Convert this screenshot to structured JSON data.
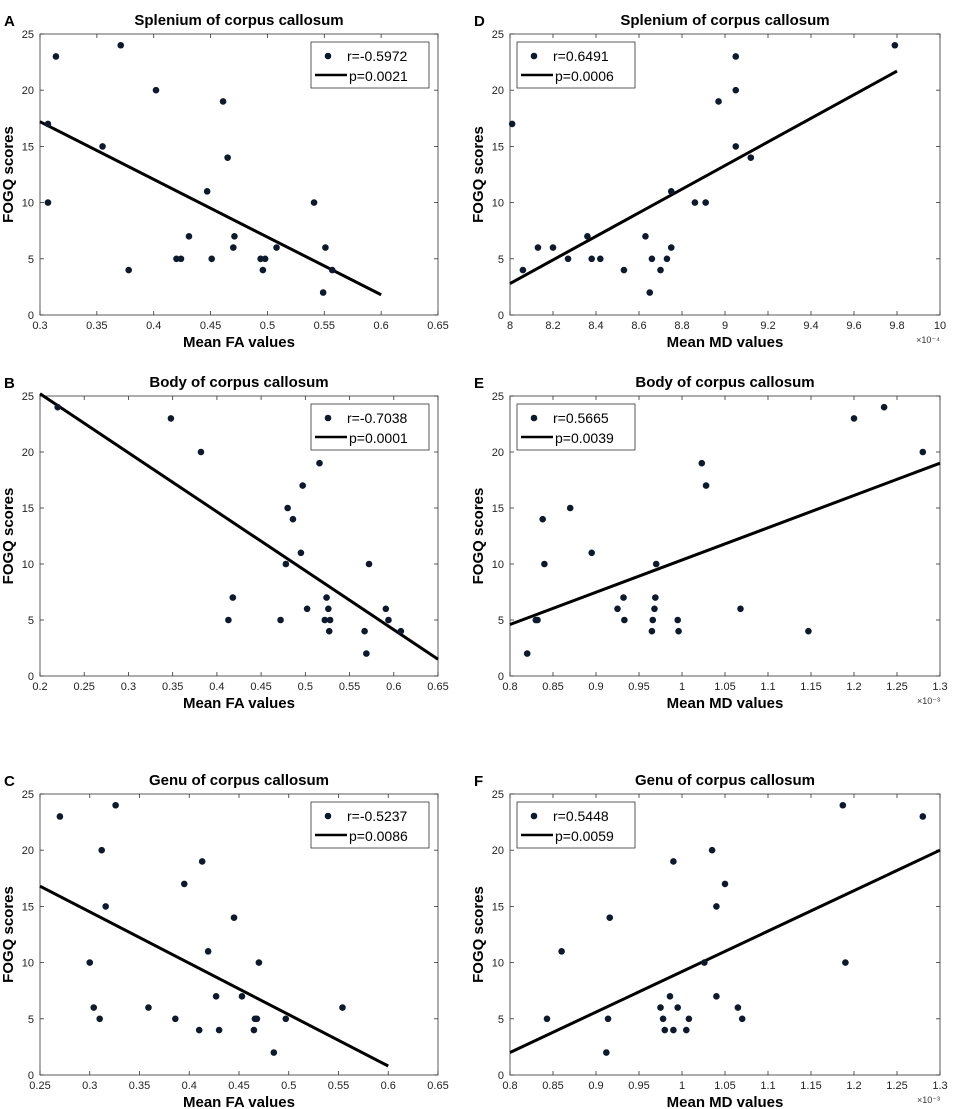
{
  "chart_data": [
    {
      "type": "scatter",
      "panel": "A",
      "title": "Splenium of corpus callosum",
      "xlabel": "Mean FA values",
      "ylabel": "FOGQ scores",
      "xlim": [
        0.3,
        0.65
      ],
      "ylim": [
        0,
        25
      ],
      "xticks": [
        0.3,
        0.35,
        0.4,
        0.45,
        0.5,
        0.55,
        0.6,
        0.65
      ],
      "xticklabels": [
        "0.3",
        "0.35",
        "0.4",
        "0.45",
        "0.5",
        "0.55",
        "0.6",
        "0.65"
      ],
      "yticks": [
        0,
        5,
        10,
        15,
        20,
        25
      ],
      "yticklabels": [
        "0",
        "5",
        "10",
        "15",
        "20",
        "25"
      ],
      "exponent_label": "",
      "legend": {
        "position": "top-right",
        "r": "r=-0.5972",
        "p": "p=0.0021"
      },
      "points": [
        [
          0.307,
          17
        ],
        [
          0.307,
          10
        ],
        [
          0.314,
          23
        ],
        [
          0.355,
          15
        ],
        [
          0.371,
          24
        ],
        [
          0.378,
          4
        ],
        [
          0.402,
          20
        ],
        [
          0.42,
          5
        ],
        [
          0.424,
          5
        ],
        [
          0.431,
          7
        ],
        [
          0.447,
          11
        ],
        [
          0.451,
          5
        ],
        [
          0.461,
          19
        ],
        [
          0.465,
          14
        ],
        [
          0.47,
          6
        ],
        [
          0.471,
          7
        ],
        [
          0.494,
          5
        ],
        [
          0.496,
          4
        ],
        [
          0.498,
          5
        ],
        [
          0.508,
          6
        ],
        [
          0.541,
          10
        ],
        [
          0.549,
          2
        ],
        [
          0.551,
          6
        ],
        [
          0.557,
          4
        ]
      ],
      "fit_line": [
        [
          0.3,
          17.2
        ],
        [
          0.6,
          1.8
        ]
      ]
    },
    {
      "type": "scatter",
      "panel": "D",
      "title": "Splenium of corpus callosum",
      "xlabel": "Mean MD values",
      "ylabel": "FOGQ scores",
      "xlim": [
        8,
        10
      ],
      "ylim": [
        0,
        25
      ],
      "xticks": [
        8,
        8.2,
        8.4,
        8.6,
        8.8,
        9,
        9.2,
        9.4,
        9.6,
        9.8,
        10
      ],
      "xticklabels": [
        "8",
        "8.2",
        "8.4",
        "8.6",
        "8.8",
        "9",
        "9.2",
        "9.4",
        "9.6",
        "9.8",
        "10"
      ],
      "yticks": [
        0,
        5,
        10,
        15,
        20,
        25
      ],
      "yticklabels": [
        "0",
        "5",
        "10",
        "15",
        "20",
        "25"
      ],
      "exponent_label": "×10⁻⁴",
      "legend": {
        "position": "top-left",
        "r": "r=0.6491",
        "p": "p=0.0006"
      },
      "points": [
        [
          8.01,
          17
        ],
        [
          8.06,
          4
        ],
        [
          8.13,
          6
        ],
        [
          8.2,
          6
        ],
        [
          8.27,
          5
        ],
        [
          8.36,
          7
        ],
        [
          8.38,
          5
        ],
        [
          8.42,
          5
        ],
        [
          8.53,
          4
        ],
        [
          8.63,
          7
        ],
        [
          8.65,
          2
        ],
        [
          8.66,
          5
        ],
        [
          8.7,
          4
        ],
        [
          8.73,
          5
        ],
        [
          8.75,
          6
        ],
        [
          8.75,
          11
        ],
        [
          8.86,
          10
        ],
        [
          8.91,
          10
        ],
        [
          8.97,
          19
        ],
        [
          9.05,
          23
        ],
        [
          9.05,
          20
        ],
        [
          9.05,
          15
        ],
        [
          9.12,
          14
        ],
        [
          9.79,
          24
        ]
      ],
      "fit_line": [
        [
          8,
          2.8
        ],
        [
          9.8,
          21.7
        ]
      ]
    },
    {
      "type": "scatter",
      "panel": "B",
      "title": "Body of corpus callosum",
      "xlabel": "Mean FA values",
      "ylabel": "FOGQ scores",
      "xlim": [
        0.2,
        0.65
      ],
      "ylim": [
        0,
        25
      ],
      "xticks": [
        0.2,
        0.25,
        0.3,
        0.35,
        0.4,
        0.45,
        0.5,
        0.55,
        0.6,
        0.65
      ],
      "xticklabels": [
        "0.2",
        "0.25",
        "0.3",
        "0.35",
        "0.4",
        "0.45",
        "0.5",
        "0.55",
        "0.6",
        "0.65"
      ],
      "yticks": [
        0,
        5,
        10,
        15,
        20,
        25
      ],
      "yticklabels": [
        "0",
        "5",
        "10",
        "15",
        "20",
        "25"
      ],
      "exponent_label": "",
      "legend": {
        "position": "top-right",
        "r": "r=-0.7038",
        "p": "p=0.0001"
      },
      "points": [
        [
          0.22,
          24
        ],
        [
          0.348,
          23
        ],
        [
          0.382,
          20
        ],
        [
          0.413,
          5
        ],
        [
          0.418,
          7
        ],
        [
          0.472,
          5
        ],
        [
          0.478,
          10
        ],
        [
          0.48,
          15
        ],
        [
          0.486,
          14
        ],
        [
          0.495,
          11
        ],
        [
          0.497,
          17
        ],
        [
          0.502,
          6
        ],
        [
          0.516,
          19
        ],
        [
          0.522,
          5
        ],
        [
          0.524,
          7
        ],
        [
          0.526,
          6
        ],
        [
          0.527,
          4
        ],
        [
          0.528,
          5
        ],
        [
          0.567,
          4
        ],
        [
          0.569,
          2
        ],
        [
          0.572,
          10
        ],
        [
          0.591,
          6
        ],
        [
          0.594,
          5
        ],
        [
          0.608,
          4
        ]
      ],
      "fit_line": [
        [
          0.2,
          25.2
        ],
        [
          0.65,
          1.5
        ]
      ]
    },
    {
      "type": "scatter",
      "panel": "E",
      "title": "Body of corpus callosum",
      "xlabel": "Mean MD values",
      "ylabel": "FOGQ scores",
      "xlim": [
        0.8,
        1.3
      ],
      "ylim": [
        0,
        25
      ],
      "xticks": [
        0.8,
        0.85,
        0.9,
        0.95,
        1,
        1.05,
        1.1,
        1.15,
        1.2,
        1.25,
        1.3
      ],
      "xticklabels": [
        "0.8",
        "0.85",
        "0.9",
        "0.95",
        "1",
        "1.05",
        "1.1",
        "1.15",
        "1.2",
        "1.25",
        "1.3"
      ],
      "yticks": [
        0,
        5,
        10,
        15,
        20,
        25
      ],
      "yticklabels": [
        "0",
        "5",
        "10",
        "15",
        "20",
        "25"
      ],
      "exponent_label": "×10⁻³",
      "legend": {
        "position": "top-left",
        "r": "r=0.5665",
        "p": "p=0.0039"
      },
      "points": [
        [
          0.82,
          2
        ],
        [
          0.83,
          5
        ],
        [
          0.832,
          5
        ],
        [
          0.838,
          14
        ],
        [
          0.84,
          10
        ],
        [
          0.87,
          15
        ],
        [
          0.895,
          11
        ],
        [
          0.925,
          6
        ],
        [
          0.932,
          7
        ],
        [
          0.933,
          5
        ],
        [
          0.965,
          4
        ],
        [
          0.966,
          5
        ],
        [
          0.968,
          6
        ],
        [
          0.969,
          7
        ],
        [
          0.97,
          10
        ],
        [
          0.995,
          5
        ],
        [
          0.996,
          4
        ],
        [
          1.023,
          19
        ],
        [
          1.028,
          17
        ],
        [
          1.068,
          6
        ],
        [
          1.147,
          4
        ],
        [
          1.2,
          23
        ],
        [
          1.235,
          24
        ],
        [
          1.28,
          20
        ]
      ],
      "fit_line": [
        [
          0.8,
          4.6
        ],
        [
          1.3,
          19.0
        ]
      ]
    },
    {
      "type": "scatter",
      "panel": "C",
      "title": "Genu of corpus callosum",
      "xlabel": "Mean FA values",
      "ylabel": "FOGQ scores",
      "xlim": [
        0.25,
        0.65
      ],
      "ylim": [
        0,
        25
      ],
      "xticks": [
        0.25,
        0.3,
        0.35,
        0.4,
        0.45,
        0.5,
        0.55,
        0.6,
        0.65
      ],
      "xticklabels": [
        "0.25",
        "0.3",
        "0.35",
        "0.4",
        "0.45",
        "0.5",
        "0.55",
        "0.6",
        "0.65"
      ],
      "yticks": [
        0,
        5,
        10,
        15,
        20,
        25
      ],
      "yticklabels": [
        "0",
        "5",
        "10",
        "15",
        "20",
        "25"
      ],
      "exponent_label": "",
      "legend": {
        "position": "top-right",
        "r": "r=-0.5237",
        "p": "p=0.0086"
      },
      "points": [
        [
          0.27,
          23
        ],
        [
          0.3,
          10
        ],
        [
          0.304,
          6
        ],
        [
          0.31,
          5
        ],
        [
          0.312,
          20
        ],
        [
          0.316,
          15
        ],
        [
          0.326,
          24
        ],
        [
          0.359,
          6
        ],
        [
          0.386,
          5
        ],
        [
          0.395,
          17
        ],
        [
          0.41,
          4
        ],
        [
          0.413,
          19
        ],
        [
          0.419,
          11
        ],
        [
          0.427,
          7
        ],
        [
          0.43,
          4
        ],
        [
          0.445,
          14
        ],
        [
          0.453,
          7
        ],
        [
          0.465,
          4
        ],
        [
          0.466,
          5
        ],
        [
          0.468,
          5
        ],
        [
          0.47,
          10
        ],
        [
          0.485,
          2
        ],
        [
          0.497,
          5
        ],
        [
          0.554,
          6
        ]
      ],
      "fit_line": [
        [
          0.25,
          16.8
        ],
        [
          0.6,
          0.8
        ]
      ]
    },
    {
      "type": "scatter",
      "panel": "F",
      "title": "Genu of corpus callosum",
      "xlabel": "Mean MD values",
      "ylabel": "FOGQ scores",
      "xlim": [
        0.8,
        1.3
      ],
      "ylim": [
        0,
        25
      ],
      "xticks": [
        0.8,
        0.85,
        0.9,
        0.95,
        1,
        1.05,
        1.1,
        1.15,
        1.2,
        1.25,
        1.3
      ],
      "xticklabels": [
        "0.8",
        "0.85",
        "0.9",
        "0.95",
        "1",
        "1.05",
        "1.1",
        "1.15",
        "1.2",
        "1.25",
        "1.3"
      ],
      "yticks": [
        0,
        5,
        10,
        15,
        20,
        25
      ],
      "yticklabels": [
        "0",
        "5",
        "10",
        "15",
        "20",
        "25"
      ],
      "exponent_label": "×10⁻³",
      "legend": {
        "position": "top-left",
        "r": "r=0.5448",
        "p": "p=0.0059"
      },
      "points": [
        [
          0.843,
          5
        ],
        [
          0.86,
          11
        ],
        [
          0.912,
          2
        ],
        [
          0.914,
          5
        ],
        [
          0.916,
          14
        ],
        [
          0.975,
          6
        ],
        [
          0.978,
          5
        ],
        [
          0.98,
          4
        ],
        [
          0.986,
          7
        ],
        [
          0.99,
          4
        ],
        [
          0.99,
          19
        ],
        [
          0.995,
          6
        ],
        [
          1.005,
          4
        ],
        [
          1.008,
          5
        ],
        [
          1.026,
          10
        ],
        [
          1.035,
          20
        ],
        [
          1.04,
          15
        ],
        [
          1.04,
          7
        ],
        [
          1.05,
          17
        ],
        [
          1.065,
          6
        ],
        [
          1.07,
          5
        ],
        [
          1.187,
          24
        ],
        [
          1.19,
          10
        ],
        [
          1.28,
          23
        ]
      ],
      "fit_line": [
        [
          0.8,
          2.0
        ],
        [
          1.3,
          20.0
        ]
      ]
    }
  ]
}
